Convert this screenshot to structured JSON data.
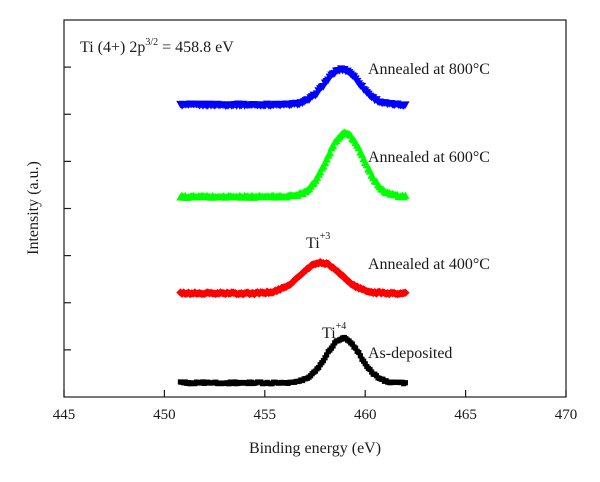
{
  "chart_data": {
    "type": "scatter",
    "title": "",
    "xlabel": "Binding energy (eV)",
    "ylabel": "Intensity (a.u.)",
    "xlim": [
      445,
      470
    ],
    "ylim": [
      0,
      8
    ],
    "x_ticks": [
      "445",
      "450",
      "455",
      "460",
      "465",
      "470"
    ],
    "grid": false,
    "annotation": {
      "prefix": "Ti (4+) 2p",
      "sup": "3/2",
      "suffix": " = 458.8 eV"
    },
    "peak_labels": [
      {
        "base": "Ti",
        "sup": "+3"
      },
      {
        "base": "Ti",
        "sup": "+4"
      }
    ],
    "series": [
      {
        "name": "Annealed at 800°C",
        "color": "#0000ff",
        "marker": "triangle-down",
        "baseline": 6.2,
        "peak_center": 458.85,
        "peak_height": 0.75,
        "peak_width": 0.85
      },
      {
        "name": "Annealed at 600°C",
        "color": "#00ff00",
        "marker": "triangle-up",
        "baseline": 4.25,
        "peak_center": 459.0,
        "peak_height": 1.35,
        "peak_width": 0.9
      },
      {
        "name": "Annealed at 400°C",
        "color": "#ff0000",
        "marker": "diamond",
        "baseline": 2.2,
        "peak_center": 457.8,
        "peak_height": 0.65,
        "peak_width": 1.0
      },
      {
        "name": "As-deposited",
        "color": "#000000",
        "marker": "square",
        "baseline": 0.3,
        "peak_center": 458.9,
        "peak_height": 0.95,
        "peak_width": 0.85
      }
    ],
    "x_range": [
      450.8,
      462.0
    ]
  }
}
